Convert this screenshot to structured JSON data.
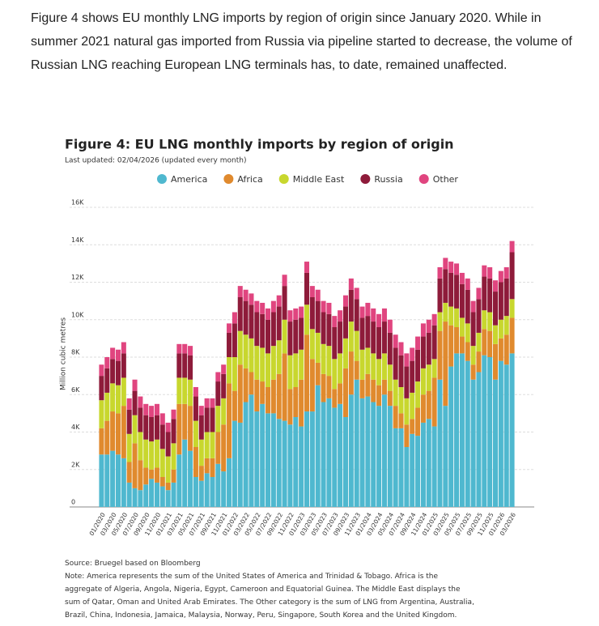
{
  "intro": "Figure 4 shows EU monthly LNG imports by region of origin since January 2020. While in summer 2021 natural gas imported from Russia via pipeline started to decrease, the volume of Russian LNG reaching European LNG terminals has, to date, remained unaffected.",
  "chart_data": {
    "type": "bar",
    "stacked": true,
    "title": "Figure 4: EU LNG monthly imports by region of origin",
    "subtitle": "Last updated: 02/04/2026 (updated every month)",
    "y_label": "Million cubic metres",
    "source": "Source: Bruegel based on Bloomberg",
    "note": "Note: America represents the sum of the United States of America and Trinidad & Tobago. Africa is the aggregate of Algeria, Angola, Nigeria, Egypt, Cameroon and Equatorial Guinea. The Middle East displays the sum of Qatar, Oman and United Arab Emirates. The Other category is the sum of LNG from Argentina, Australia, Brazil, China, Indonesia, Jamaica, Malaysia, Norway, Peru, Singapore, South Korea and the United Kingdom.",
    "legend": "top",
    "grid": true,
    "ylim": [
      0,
      16000
    ],
    "yticks": [
      0,
      {
        "value": 2000,
        "label": "2K"
      },
      {
        "value": 4000,
        "label": "4K"
      },
      {
        "value": 6000,
        "label": "6K"
      },
      {
        "value": 8000,
        "label": "8K"
      },
      {
        "value": 10000,
        "label": "10K"
      },
      {
        "value": 12000,
        "label": "12K"
      },
      {
        "value": 14000,
        "label": "14K"
      },
      {
        "value": 16000,
        "label": "16K"
      }
    ],
    "categories": [
      "01/2020",
      null,
      "03/2020",
      null,
      "05/2020",
      null,
      "07/2020",
      null,
      "09/2020",
      null,
      "11/2020",
      null,
      "01/2021",
      null,
      "03/2021",
      null,
      "05/2021",
      null,
      "07/2021",
      null,
      "09/2021",
      null,
      "11/2021",
      null,
      "01/2022",
      null,
      "03/2022",
      null,
      "05/2022",
      null,
      "07/2022",
      null,
      "09/2022",
      null,
      "11/2022",
      null,
      "01/2023",
      null,
      "03/2023",
      null,
      "05/2023",
      null,
      "07/2023",
      null,
      "09/2023",
      null,
      "11/2023",
      null,
      "01/2024",
      null,
      "03/2024",
      null,
      "05/2024",
      null,
      "07/2024",
      null,
      "09/2024",
      null,
      "11/2024",
      null,
      "01/2025",
      null,
      "03/2025",
      null,
      "05/2025",
      null,
      "07/2025",
      null,
      "09/2025",
      null,
      "11/2025",
      null,
      "01/2026",
      null,
      "03/2026"
    ],
    "series": [
      {
        "name": "America",
        "color": "#4fb8cf",
        "values": [
          2800,
          2800,
          3000,
          2800,
          2600,
          1300,
          1000,
          900,
          1200,
          1500,
          1300,
          1100,
          900,
          1300,
          2800,
          3600,
          3000,
          1600,
          1400,
          1800,
          1600,
          2300,
          1900,
          2600,
          4600,
          4500,
          5600,
          6000,
          5100,
          5500,
          5000,
          5000,
          4700,
          4600,
          4400,
          4800,
          4300,
          5100,
          5100,
          6500,
          5600,
          5800,
          5300,
          5500,
          4800,
          6000,
          6800,
          5800,
          5900,
          5600,
          5400,
          6000,
          5400,
          4200,
          4200,
          3200,
          3900,
          3800,
          4500,
          4700,
          4300,
          6800,
          5400,
          7500,
          8200,
          8200,
          7800,
          6800,
          7200,
          8100,
          8000,
          6800,
          7800,
          7600,
          8200
        ]
      },
      {
        "name": "Africa",
        "color": "#e08a2e",
        "values": [
          1400,
          1800,
          2100,
          2200,
          2800,
          1100,
          2400,
          1600,
          900,
          500,
          800,
          500,
          400,
          700,
          2700,
          1900,
          2400,
          1600,
          800,
          800,
          1000,
          1700,
          2500,
          4000,
          1600,
          3100,
          1800,
          1200,
          1700,
          1200,
          1400,
          1800,
          2400,
          3600,
          1900,
          1600,
          2500,
          4100,
          2800,
          1200,
          1500,
          1200,
          1000,
          1100,
          2600,
          2300,
          1000,
          1000,
          1200,
          1200,
          1100,
          800,
          800,
          1200,
          800,
          1200,
          800,
          1500,
          1500,
          1500,
          2600,
          2600,
          4500,
          2200,
          1400,
          900,
          1000,
          800,
          1100,
          1400,
          1400,
          1900,
          1200,
          1600,
          1900
        ]
      },
      {
        "name": "Middle East",
        "color": "#c8d72e",
        "values": [
          1500,
          1500,
          1500,
          1500,
          1500,
          1500,
          1500,
          1500,
          1500,
          1500,
          1500,
          1500,
          1400,
          1400,
          1400,
          1400,
          1400,
          1400,
          1400,
          1400,
          1400,
          1400,
          1400,
          1400,
          1800,
          1800,
          1800,
          1800,
          1800,
          1800,
          1800,
          1800,
          1800,
          1800,
          1800,
          1800,
          1600,
          1600,
          1600,
          1600,
          1600,
          1600,
          1600,
          1600,
          1600,
          1600,
          1600,
          1600,
          1400,
          1400,
          1400,
          1400,
          1400,
          1400,
          1400,
          1400,
          1400,
          1400,
          1400,
          1400,
          1000,
          1000,
          1000,
          1000,
          1000,
          1000,
          1000,
          1000,
          1000,
          1000,
          1000,
          1000,
          1000,
          1000,
          1000
        ]
      },
      {
        "name": "Russia",
        "color": "#8e1b3a",
        "values": [
          1300,
          1300,
          1300,
          1300,
          1300,
          1300,
          1300,
          1300,
          1300,
          1300,
          1300,
          1300,
          1300,
          1300,
          1300,
          1300,
          1300,
          1300,
          1300,
          1300,
          1300,
          1300,
          1300,
          1300,
          1800,
          1800,
          1800,
          1800,
          1800,
          1800,
          1800,
          1800,
          1800,
          1800,
          1800,
          1800,
          1700,
          1700,
          1700,
          1700,
          1700,
          1700,
          1700,
          1700,
          1700,
          1700,
          1700,
          1700,
          1700,
          1700,
          1700,
          1700,
          1700,
          1700,
          1700,
          1700,
          1700,
          1700,
          1700,
          1700,
          1800,
          1800,
          1800,
          1800,
          1800,
          1800,
          1800,
          1800,
          1800,
          1800,
          1800,
          1800,
          2000,
          2000,
          2500
        ]
      },
      {
        "name": "Other",
        "color": "#e0457f",
        "values": [
          600,
          600,
          600,
          600,
          600,
          600,
          600,
          600,
          600,
          600,
          600,
          600,
          500,
          500,
          500,
          500,
          500,
          500,
          500,
          500,
          500,
          500,
          500,
          500,
          600,
          600,
          600,
          600,
          600,
          600,
          600,
          600,
          600,
          600,
          600,
          600,
          600,
          600,
          600,
          600,
          600,
          600,
          600,
          600,
          600,
          600,
          600,
          600,
          700,
          700,
          700,
          700,
          700,
          700,
          700,
          700,
          700,
          700,
          700,
          700,
          600,
          600,
          600,
          600,
          600,
          600,
          600,
          600,
          600,
          600,
          600,
          600,
          600,
          600,
          600
        ]
      }
    ]
  }
}
